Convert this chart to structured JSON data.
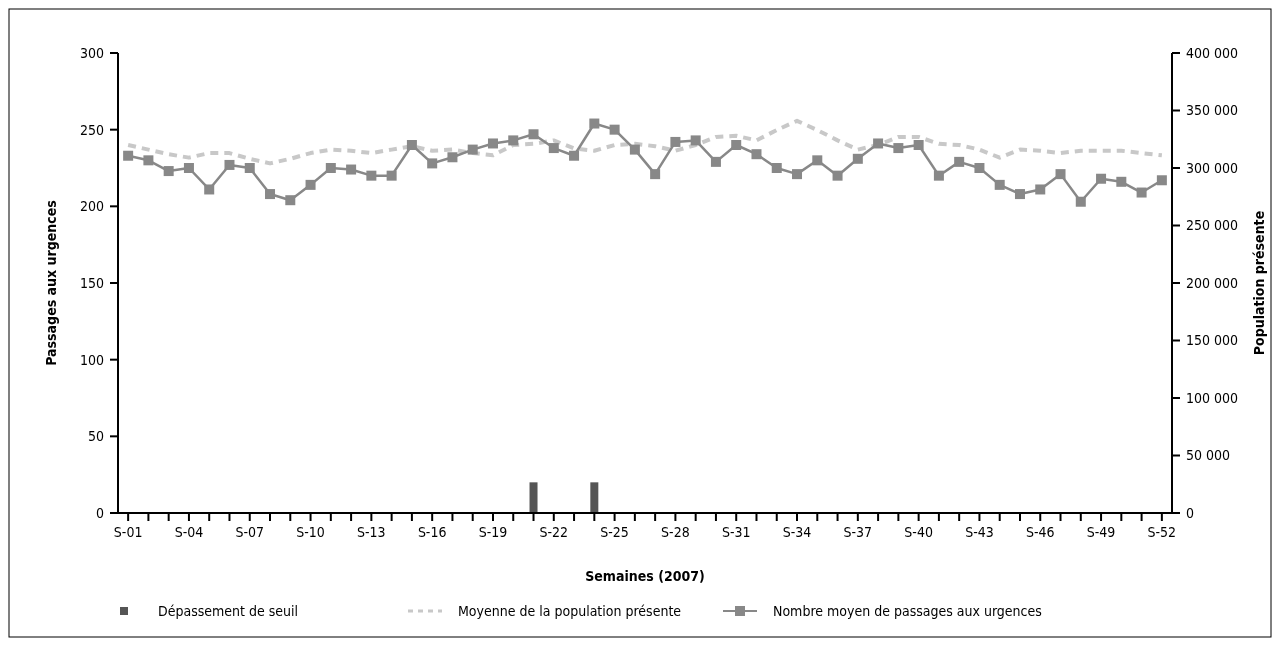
{
  "chart_data": {
    "type": "line",
    "xlabel": "Semaines (2007)",
    "ylabel": "Passages aux urgences",
    "y2label": "Population présente",
    "categories": [
      "S-01",
      null,
      null,
      "S-04",
      null,
      null,
      "S-07",
      null,
      null,
      "S-10",
      null,
      null,
      "S-13",
      null,
      null,
      "S-16",
      null,
      null,
      "S-19",
      null,
      null,
      "S-22",
      null,
      null,
      "S-25",
      null,
      null,
      "S-28",
      null,
      null,
      "S-31",
      null,
      null,
      "S-34",
      null,
      null,
      "S-37",
      null,
      null,
      "S-40",
      null,
      null,
      "S-43",
      null,
      null,
      "S-46",
      null,
      null,
      "S-49",
      null,
      null,
      "S-52"
    ],
    "ylim": [
      0,
      300
    ],
    "yticks": [
      0,
      50,
      100,
      150,
      200,
      250,
      300
    ],
    "y2lim": [
      0,
      400000
    ],
    "y2ticks": [
      {
        "value": 0,
        "label": "0"
      },
      {
        "value": 50000,
        "label": "50 000"
      },
      {
        "value": 100000,
        "label": "100 000"
      },
      {
        "value": 150000,
        "label": "150 000"
      },
      {
        "value": 200000,
        "label": "200 000"
      },
      {
        "value": 250000,
        "label": "250 000"
      },
      {
        "value": 300000,
        "label": "300 000"
      },
      {
        "value": 350000,
        "label": "350 000"
      },
      {
        "value": 400000,
        "label": "400 000"
      }
    ],
    "legend": "bottom",
    "grid": false,
    "series": [
      {
        "name": "Dépassement de seuil",
        "type": "bar",
        "color": "#555555",
        "values": [
          null,
          null,
          null,
          null,
          null,
          null,
          null,
          null,
          null,
          null,
          null,
          null,
          null,
          null,
          null,
          null,
          null,
          null,
          null,
          null,
          20,
          null,
          null,
          20,
          null,
          null,
          null,
          null,
          null,
          null,
          null,
          null,
          null,
          null,
          null,
          null,
          null,
          null,
          null,
          null,
          null,
          null,
          null,
          null,
          null,
          null,
          null,
          null,
          null,
          null,
          null,
          null
        ]
      },
      {
        "name": "Moyenne de la population présente",
        "axis": "y2",
        "color": "#c8c8c8",
        "line_style": "dashed",
        "marker": "none",
        "values": [
          320000,
          316000,
          312000,
          309000,
          313000,
          313000,
          308000,
          304000,
          308000,
          313000,
          316000,
          315000,
          313000,
          316000,
          319000,
          315000,
          316000,
          313000,
          311000,
          320000,
          321000,
          324000,
          317000,
          315000,
          320000,
          321000,
          319000,
          315000,
          320000,
          327000,
          328000,
          324000,
          333000,
          341000,
          333000,
          324000,
          316000,
          320000,
          327000,
          327000,
          321000,
          320000,
          316000,
          309000,
          316000,
          315000,
          313000,
          315000,
          315000,
          315000,
          313000,
          311000
        ]
      },
      {
        "name": "Nombre moyen de passages aux urgences",
        "color": "#888888",
        "line_style": "solid",
        "marker": "square",
        "values": [
          233,
          230,
          223,
          225,
          211,
          227,
          225,
          208,
          204,
          214,
          225,
          224,
          220,
          220,
          240,
          228,
          232,
          237,
          241,
          243,
          247,
          238,
          233,
          254,
          250,
          237,
          221,
          242,
          243,
          229,
          240,
          234,
          225,
          221,
          230,
          220,
          231,
          241,
          238,
          240,
          220,
          229,
          225,
          214,
          208,
          211,
          221,
          203,
          218,
          216,
          209,
          217
        ]
      }
    ]
  }
}
